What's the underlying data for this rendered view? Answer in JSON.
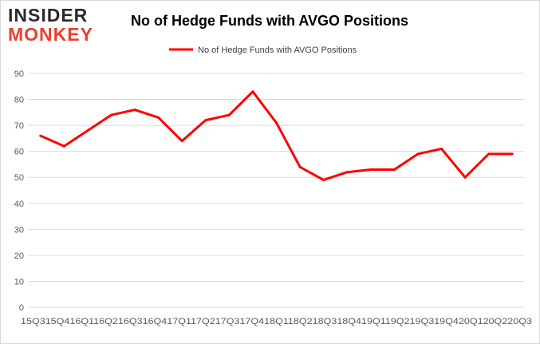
{
  "logo": {
    "line1": "INSIDER",
    "line2": "MONKEY"
  },
  "colors": {
    "series": "#ff0000",
    "grid": "#d9d9d9",
    "axis_text": "#595959",
    "title": "#000000",
    "logo_dark": "#2b2b2b",
    "logo_red": "#e8402e"
  },
  "chart_data": {
    "type": "line",
    "title": "No of Hedge Funds with AVGO Positions",
    "legend": "top-center",
    "grid": true,
    "ylim": [
      0,
      90
    ],
    "yticks": [
      0,
      10,
      20,
      30,
      40,
      50,
      60,
      70,
      80,
      90
    ],
    "categories": [
      "2015Q3",
      "2015Q4",
      "2016Q1",
      "2016Q2",
      "2016Q3",
      "2016Q4",
      "2017Q1",
      "2017Q2",
      "2017Q3",
      "2017Q4",
      "2018Q1",
      "2018Q2",
      "2018Q3",
      "2018Q4",
      "2019Q1",
      "2019Q2",
      "2019Q3",
      "2019Q4",
      "2020Q1",
      "2020Q2",
      "2020Q3"
    ],
    "xtick_text": "15Q315Q416Q116Q216Q316Q417Q117Q217Q317Q418Q118Q218Q318Q419Q119Q219Q319Q420Q120Q220Q3",
    "series": [
      {
        "name": "No of Hedge Funds with AVGO Positions",
        "values": [
          66,
          62,
          68,
          74,
          76,
          73,
          64,
          72,
          74,
          83,
          71,
          54,
          49,
          52,
          53,
          53,
          59,
          61,
          50,
          59,
          59
        ]
      }
    ]
  }
}
